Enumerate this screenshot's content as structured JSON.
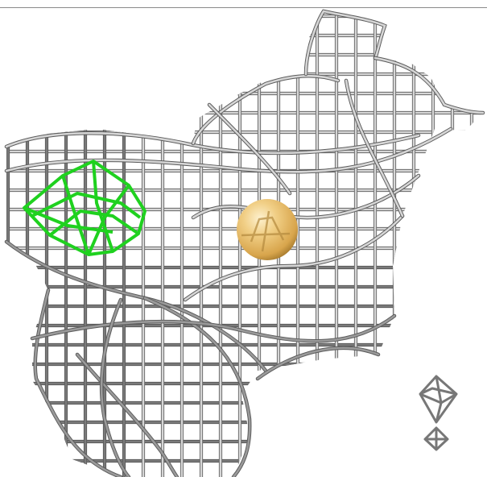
{
  "scene": {
    "type": "molecular-density-wireframe",
    "background_color": "#ffffff",
    "mesh_color_light": "#d6d6d6",
    "mesh_color_dark": "#7a7a7a",
    "ligand_mesh_color": "#1fd11f",
    "sphere_color": "#e2b560",
    "sphere_highlight": "#fbe7b8",
    "sphere_shadow": "#a07a2e",
    "small_markers": [
      "octahedron-marker",
      "octahedron-marker"
    ]
  }
}
